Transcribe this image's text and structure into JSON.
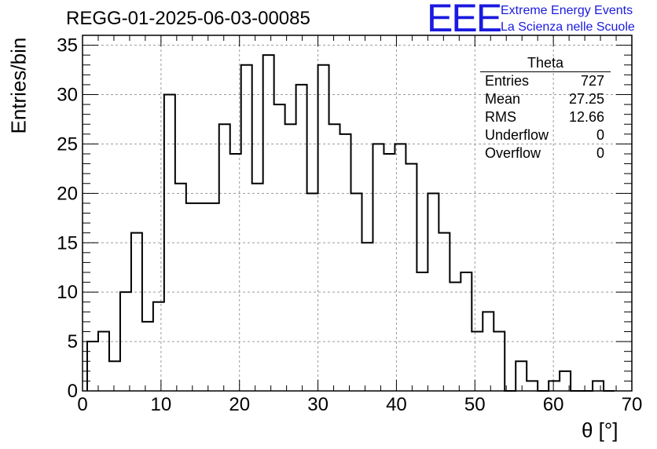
{
  "title": "REGG-01-2025-06-03-00085",
  "logo": {
    "mark": "EEE",
    "line1": "Extreme Energy Events",
    "line2": "La Scienza nelle Scuole",
    "color": "#1a1adf"
  },
  "stats": {
    "title": "Theta",
    "rows": [
      {
        "label": "Entries",
        "value": "727"
      },
      {
        "label": "Mean",
        "value": "27.25"
      },
      {
        "label": "RMS",
        "value": "12.66"
      },
      {
        "label": "Underflow",
        "value": "0"
      },
      {
        "label": "Overflow",
        "value": "0"
      }
    ]
  },
  "chart_data": {
    "type": "bar",
    "style": "step-histogram",
    "xlabel": "θ [°]",
    "ylabel": "Entries/bin",
    "xlim": [
      0,
      70
    ],
    "ylim": [
      0,
      36
    ],
    "xticks": [
      0,
      10,
      20,
      30,
      40,
      50,
      60,
      70
    ],
    "yticks": [
      0,
      5,
      10,
      15,
      20,
      25,
      30,
      35
    ],
    "grid": true,
    "bin_width": 1.4,
    "bin_edges_start": 0.6,
    "values": [
      5,
      6,
      3,
      10,
      16,
      7,
      9,
      30,
      21,
      19,
      19,
      19,
      27,
      24,
      33,
      21,
      34,
      29,
      27,
      31,
      20,
      33,
      27,
      26,
      20,
      15,
      25,
      24,
      25,
      23,
      12,
      20,
      16,
      11,
      12,
      6,
      8,
      6,
      0,
      3,
      1,
      0,
      1,
      2,
      0,
      0,
      1,
      0
    ]
  }
}
